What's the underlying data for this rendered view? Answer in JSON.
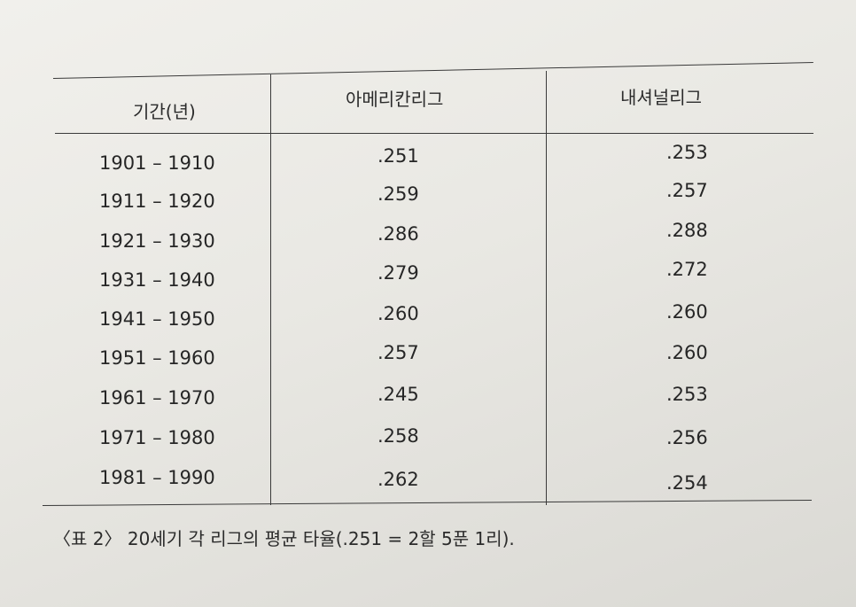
{
  "table": {
    "headers": {
      "period": "기간(년)",
      "american_league": "아메리칸리그",
      "national_league": "내셔널리그"
    },
    "rows": [
      {
        "period": "1901 – 1910",
        "al": ".251",
        "nl": ".253"
      },
      {
        "period": "1911 – 1920",
        "al": ".259",
        "nl": ".257"
      },
      {
        "period": "1921 – 1930",
        "al": ".286",
        "nl": ".288"
      },
      {
        "period": "1931 – 1940",
        "al": ".279",
        "nl": ".272"
      },
      {
        "period": "1941 – 1950",
        "al": ".260",
        "nl": ".260"
      },
      {
        "period": "1951 – 1960",
        "al": ".257",
        "nl": ".260"
      },
      {
        "period": "1961 – 1970",
        "al": ".245",
        "nl": ".253"
      },
      {
        "period": "1971 – 1980",
        "al": ".258",
        "nl": ".256"
      },
      {
        "period": "1981 – 1990",
        "al": ".262",
        "nl": ".254"
      }
    ]
  },
  "caption": "〈표 2〉 20세기 각 리그의 평균 타율(.251 = 2할 5푼 1리)."
}
